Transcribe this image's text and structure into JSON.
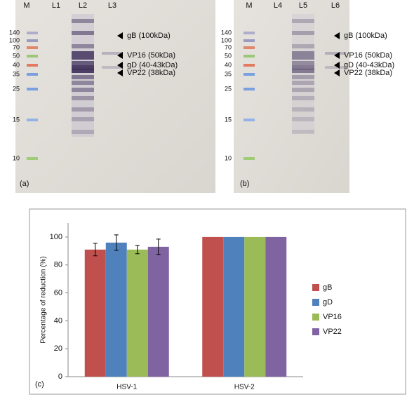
{
  "blots": [
    {
      "lanes": [
        "M",
        "L1",
        "L2",
        "L3"
      ],
      "markers": [
        "140",
        "100",
        "70",
        "50",
        "40",
        "35",
        "25",
        "15",
        "10"
      ],
      "band_labels": [
        "gB (100kDa)",
        "VP16 (50kDa)",
        "gD (40-43kDa)",
        "VP22 (38kDa)"
      ],
      "panel": "(a)"
    },
    {
      "lanes": [
        "M",
        "L4",
        "L5",
        "L6"
      ],
      "markers": [
        "140",
        "100",
        "70",
        "50",
        "40",
        "35",
        "25",
        "15",
        "10"
      ],
      "band_labels": [
        "gB (100kDa)",
        "VP16 (50kDa)",
        "gD (40-43kDa)",
        "VP22 (38kDa)"
      ],
      "panel": "(b)"
    }
  ],
  "chart_data": {
    "type": "bar",
    "panel": "(c)",
    "ylabel": "Percentage of reduction (%)",
    "categories": [
      "HSV-1",
      "HSV-2"
    ],
    "series": [
      {
        "name": "gB",
        "color": "#c0504d",
        "values": [
          91,
          100
        ],
        "errors": [
          4.5,
          null
        ]
      },
      {
        "name": "gD",
        "color": "#4f81bd",
        "values": [
          96,
          100
        ],
        "errors": [
          5.5,
          null
        ]
      },
      {
        "name": "VP16",
        "color": "#9bbb59",
        "values": [
          91,
          100
        ],
        "errors": [
          3,
          null
        ]
      },
      {
        "name": "VP22",
        "color": "#8064a2",
        "values": [
          93,
          100
        ],
        "errors": [
          5.5,
          null
        ]
      }
    ],
    "ylim": [
      0,
      110
    ],
    "yticks": [
      0,
      20,
      40,
      60,
      80,
      100
    ],
    "legend": "right"
  }
}
